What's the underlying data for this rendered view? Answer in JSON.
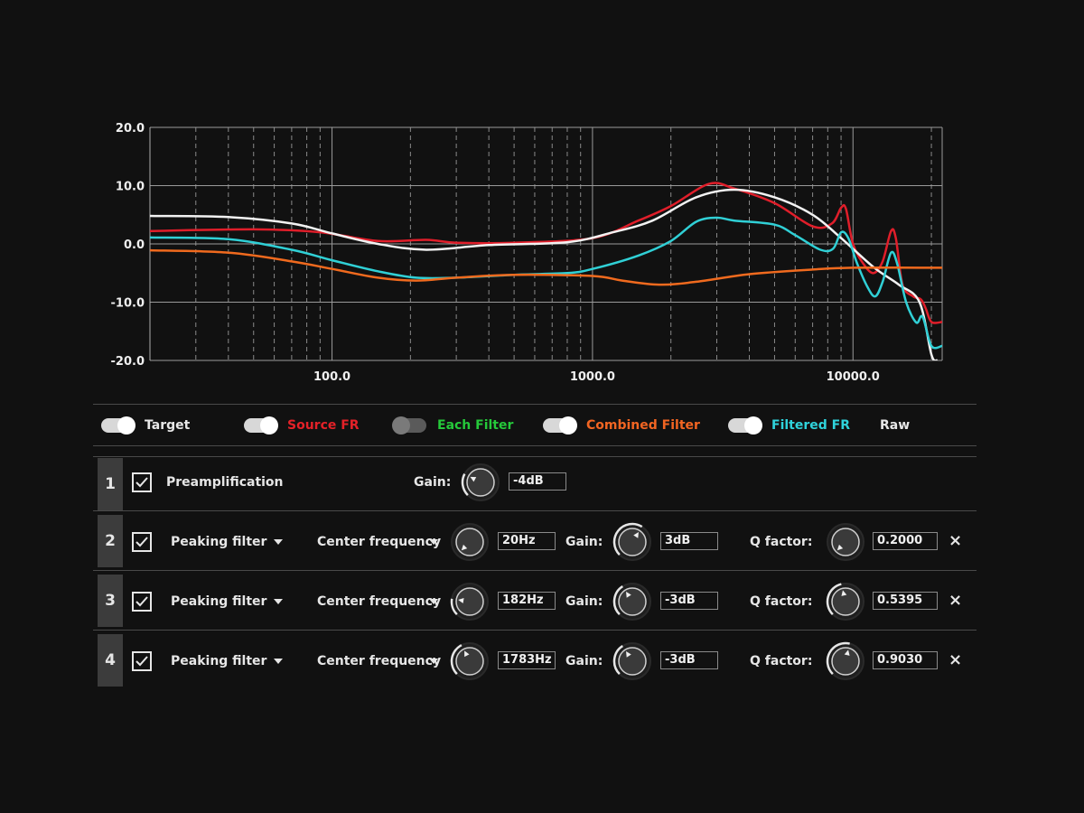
{
  "chart_data": {
    "type": "line",
    "x_scale": "log",
    "xlim": [
      20,
      22000
    ],
    "ylim": [
      -20,
      20
    ],
    "x_ticks": [
      {
        "v": 100,
        "label": "100.0"
      },
      {
        "v": 1000,
        "label": "1000.0"
      },
      {
        "v": 10000,
        "label": "10000.0"
      }
    ],
    "y_ticks": [
      {
        "v": 20,
        "label": "20.0"
      },
      {
        "v": 10,
        "label": "10.0"
      },
      {
        "v": 0,
        "label": "0.0"
      },
      {
        "v": -10,
        "label": "-10.0"
      },
      {
        "v": -20,
        "label": "-20.0"
      }
    ],
    "grid": true,
    "series": [
      {
        "name": "Source FR",
        "color": "#e01e2a",
        "points": [
          [
            20,
            2.2
          ],
          [
            50,
            2.5
          ],
          [
            90,
            2
          ],
          [
            150,
            0.5
          ],
          [
            230,
            0.7
          ],
          [
            300,
            0.2
          ],
          [
            500,
            0.2
          ],
          [
            1000,
            1
          ],
          [
            1500,
            4
          ],
          [
            2000,
            6.5
          ],
          [
            2800,
            10.3
          ],
          [
            3500,
            9.5
          ],
          [
            5000,
            7
          ],
          [
            7000,
            3
          ],
          [
            8300,
            3.5
          ],
          [
            9000,
            6.2
          ],
          [
            9400,
            6
          ],
          [
            10000,
            0
          ],
          [
            11000,
            -3.5
          ],
          [
            12000,
            -5
          ],
          [
            13000,
            -3
          ],
          [
            14000,
            2.2
          ],
          [
            14600,
            1
          ],
          [
            15500,
            -7
          ],
          [
            17000,
            -9
          ],
          [
            18200,
            -9.5
          ],
          [
            19000,
            -11
          ],
          [
            20000,
            -13.4
          ],
          [
            22000,
            -13.4
          ]
        ]
      },
      {
        "name": "Target",
        "color": "#f2f2f2",
        "points": [
          [
            20,
            4.8
          ],
          [
            40,
            4.6
          ],
          [
            70,
            3.5
          ],
          [
            100,
            1.8
          ],
          [
            150,
            0
          ],
          [
            230,
            -1
          ],
          [
            400,
            -0.2
          ],
          [
            800,
            0.3
          ],
          [
            1200,
            2
          ],
          [
            1700,
            4
          ],
          [
            2500,
            8
          ],
          [
            3500,
            9.3
          ],
          [
            5000,
            8
          ],
          [
            7000,
            5
          ],
          [
            9000,
            1
          ],
          [
            12000,
            -4
          ],
          [
            15000,
            -7
          ],
          [
            18000,
            -10
          ],
          [
            20000,
            -19
          ],
          [
            21000,
            -20
          ]
        ]
      },
      {
        "name": "Filtered FR",
        "color": "#30d0d6",
        "points": [
          [
            20,
            1.1
          ],
          [
            40,
            0.8
          ],
          [
            70,
            -1
          ],
          [
            100,
            -2.8
          ],
          [
            150,
            -4.7
          ],
          [
            210,
            -5.8
          ],
          [
            300,
            -5.8
          ],
          [
            500,
            -5.3
          ],
          [
            800,
            -5
          ],
          [
            1000,
            -4.3
          ],
          [
            1500,
            -2
          ],
          [
            2000,
            0.5
          ],
          [
            2500,
            3.8
          ],
          [
            3000,
            4.5
          ],
          [
            3500,
            4
          ],
          [
            5000,
            3.3
          ],
          [
            6000,
            1.5
          ],
          [
            7500,
            -1
          ],
          [
            8400,
            -0.8
          ],
          [
            9000,
            2
          ],
          [
            9600,
            1
          ],
          [
            10300,
            -3
          ],
          [
            11400,
            -7.5
          ],
          [
            12200,
            -9
          ],
          [
            13000,
            -6.5
          ],
          [
            14000,
            -1.5
          ],
          [
            14800,
            -3.5
          ],
          [
            16000,
            -10
          ],
          [
            17500,
            -13.5
          ],
          [
            18500,
            -12.5
          ],
          [
            20000,
            -17.5
          ],
          [
            22000,
            -17.5
          ]
        ]
      },
      {
        "name": "Combined Filter",
        "color": "#f06a1e",
        "points": [
          [
            20,
            -1.1
          ],
          [
            40,
            -1.5
          ],
          [
            70,
            -3
          ],
          [
            100,
            -4.3
          ],
          [
            150,
            -5.8
          ],
          [
            210,
            -6.3
          ],
          [
            300,
            -5.8
          ],
          [
            500,
            -5.3
          ],
          [
            1000,
            -5.5
          ],
          [
            1300,
            -6.3
          ],
          [
            1800,
            -7
          ],
          [
            2500,
            -6.5
          ],
          [
            4000,
            -5.2
          ],
          [
            7000,
            -4.4
          ],
          [
            10000,
            -4.1
          ],
          [
            22000,
            -4.1
          ]
        ]
      }
    ]
  },
  "legend": [
    {
      "label": "Target",
      "color": "#e8e8e8",
      "on": true,
      "toggle": true
    },
    {
      "label": "Source FR",
      "color": "#e42128",
      "on": true,
      "toggle": true
    },
    {
      "label": "Each Filter",
      "color": "#25c93a",
      "on": false,
      "toggle": true
    },
    {
      "label": "Combined Filter",
      "color": "#f26522",
      "on": true,
      "toggle": true
    },
    {
      "label": "Filtered FR",
      "color": "#2fd3db",
      "on": true,
      "toggle": true
    },
    {
      "label": "Raw",
      "color": "#e8e8e8",
      "on": false,
      "toggle": false
    }
  ],
  "filters": [
    {
      "index": "1",
      "checked": true,
      "type": "Preamplification",
      "gain_label": "Gain:",
      "gain": "-4dB",
      "gain_level": 0.27
    },
    {
      "index": "2",
      "checked": true,
      "type": "Peaking filter",
      "freq_label": "Center frequency",
      "freq": "20Hz",
      "freq_level": 0.0,
      "gain_label": "Gain:",
      "gain": "3dB",
      "gain_level": 0.62,
      "q_label": "Q factor:",
      "q": "0.2000",
      "q_level": 0.0,
      "close": "×"
    },
    {
      "index": "3",
      "checked": true,
      "type": "Peaking filter",
      "freq_label": "Center frequency",
      "freq": "182Hz",
      "freq_level": 0.2,
      "gain_label": "Gain:",
      "gain": "-3dB",
      "gain_level": 0.38,
      "q_label": "Q factor:",
      "q": "0.5395",
      "q_level": 0.45,
      "close": "×"
    },
    {
      "index": "4",
      "checked": true,
      "type": "Peaking filter",
      "freq_label": "Center frequency",
      "freq": "1783Hz",
      "freq_level": 0.4,
      "gain_label": "Gain:",
      "gain": "-3dB",
      "gain_level": 0.38,
      "q_label": "Q factor:",
      "q": "0.9030",
      "q_level": 0.55,
      "close": "×"
    }
  ]
}
